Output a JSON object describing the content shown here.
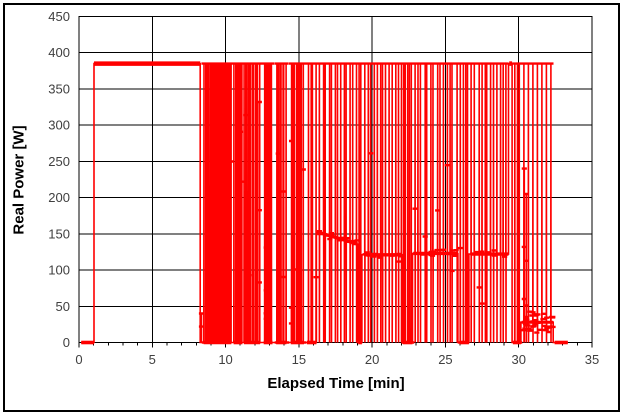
{
  "window": {
    "background": "#FFFFFF",
    "frame_border_color": "#000000"
  },
  "chart_data": {
    "type": "line",
    "title": "",
    "xlabel": "Elapsed Time [min]",
    "ylabel": "Real Power [W]",
    "xlim": [
      0,
      35
    ],
    "ylim": [
      0,
      450
    ],
    "x_ticks": [
      0,
      5,
      10,
      15,
      20,
      25,
      30,
      35
    ],
    "y_ticks": [
      0,
      50,
      100,
      150,
      200,
      250,
      300,
      350,
      400,
      450
    ],
    "x_minor_step": 1,
    "grid": true,
    "legend": "none",
    "series_color": "#FF0000",
    "gridline_color": "#000000",
    "tick_label_color": "#404040",
    "axis_title_color": "#000000",
    "marker": "dash",
    "seed": 9,
    "segments": [
      {
        "kind": "flat",
        "t0": 0.15,
        "t1": 1.02,
        "level": 0
      },
      {
        "kind": "flat",
        "t0": 1.02,
        "t1": 8.27,
        "level": 385
      },
      {
        "kind": "burst",
        "t0": 8.5,
        "t1": 10.4,
        "base": 0,
        "high": 385,
        "n": 22
      },
      {
        "kind": "burst",
        "t0": 10.55,
        "t1": 11.15,
        "base": 0,
        "high": 385,
        "n": 7
      },
      {
        "kind": "burst",
        "t0": 11.25,
        "t1": 12.35,
        "base": 0,
        "high": 385,
        "n": 11
      },
      {
        "kind": "burst",
        "t0": 12.6,
        "t1": 13.2,
        "base": 0,
        "high": 385,
        "n": 6
      },
      {
        "kind": "burst",
        "t0": 13.45,
        "t1": 14.15,
        "base": 0,
        "high": 385,
        "n": 7
      },
      {
        "kind": "burst",
        "t0": 14.45,
        "t1": 15.35,
        "base": 0,
        "high": 385,
        "n": 8
      },
      {
        "kind": "burst",
        "t0": 15.55,
        "t1": 16.2,
        "base": 0,
        "high": 385,
        "n": 4
      },
      {
        "kind": "burst",
        "t0": 16.35,
        "t1": 19.0,
        "base": 152,
        "base_end": 136,
        "high": 385,
        "n": 13,
        "dip": 0
      },
      {
        "kind": "burst",
        "t0": 19.05,
        "t1": 19.3,
        "base": 0,
        "high": 385,
        "n": 2
      },
      {
        "kind": "burst",
        "t0": 19.45,
        "t1": 22.05,
        "base": 121,
        "high": 385,
        "n": 13,
        "dip": 0
      },
      {
        "kind": "burst",
        "t0": 22.1,
        "t1": 22.75,
        "base": 0,
        "high": 385,
        "n": 5
      },
      {
        "kind": "burst",
        "t0": 22.8,
        "t1": 25.85,
        "base": 123,
        "high": 385,
        "n": 14,
        "dip": 0
      },
      {
        "kind": "burst",
        "t0": 25.95,
        "t1": 26.6,
        "base": 0,
        "high": 385,
        "n": 4
      },
      {
        "kind": "burst",
        "t0": 26.7,
        "t1": 29.3,
        "base": 122,
        "high": 385,
        "n": 12,
        "dip": 0
      },
      {
        "kind": "flat",
        "t0": 29.35,
        "t1": 29.55,
        "level": 385
      },
      {
        "kind": "burst",
        "t0": 29.6,
        "t1": 30.15,
        "base": 0,
        "high": 385,
        "n": 3
      },
      {
        "kind": "band",
        "t0": 30.2,
        "t1": 32.35,
        "level": 28,
        "jitter": 15,
        "high": 385,
        "n_spikes": 7,
        "n_dots": 42
      },
      {
        "kind": "flat",
        "t0": 32.45,
        "t1": 33.35,
        "level": 0
      }
    ],
    "subspikes": [
      {
        "t": 8.36,
        "top": 40
      },
      {
        "t": 12.3,
        "top": 332
      },
      {
        "t": 12.78,
        "top": 131
      },
      {
        "t": 12.95,
        "top": 252
      },
      {
        "t": 14.5,
        "top": 48
      },
      {
        "t": 30.38,
        "top": 240
      },
      {
        "t": 30.52,
        "top": 205
      }
    ]
  }
}
